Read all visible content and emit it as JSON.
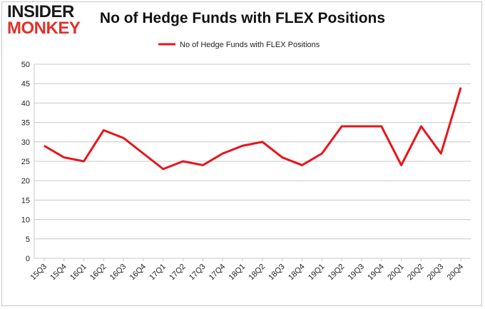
{
  "logo": {
    "line1": "INSIDER",
    "line2": "MONKEY"
  },
  "colors": {
    "series": "#e8141a",
    "grid": "#c8c8c8",
    "logo_red": "#e0312b"
  },
  "chart_data": {
    "type": "line",
    "title": "No of Hedge Funds with FLEX Positions",
    "xlabel": "",
    "ylabel": "",
    "categories": [
      "15Q3",
      "15Q4",
      "16Q1",
      "16Q2",
      "16Q3",
      "16Q4",
      "17Q1",
      "17Q2",
      "17Q3",
      "17Q4",
      "18Q1",
      "18Q2",
      "18Q3",
      "18Q4",
      "19Q1",
      "19Q2",
      "19Q3",
      "19Q4",
      "20Q1",
      "20Q2",
      "20Q3",
      "20Q4"
    ],
    "series": [
      {
        "name": "No of Hedge Funds with FLEX Positions",
        "values": [
          29,
          26,
          25,
          33,
          31,
          27,
          23,
          25,
          24,
          27,
          29,
          30,
          26,
          24,
          27,
          34,
          34,
          34,
          24,
          34,
          27,
          44
        ]
      }
    ],
    "ylim": [
      0,
      50
    ],
    "yticks": [
      0,
      5,
      10,
      15,
      20,
      25,
      30,
      35,
      40,
      45,
      50
    ],
    "grid": true,
    "legend_position": "top-center"
  }
}
